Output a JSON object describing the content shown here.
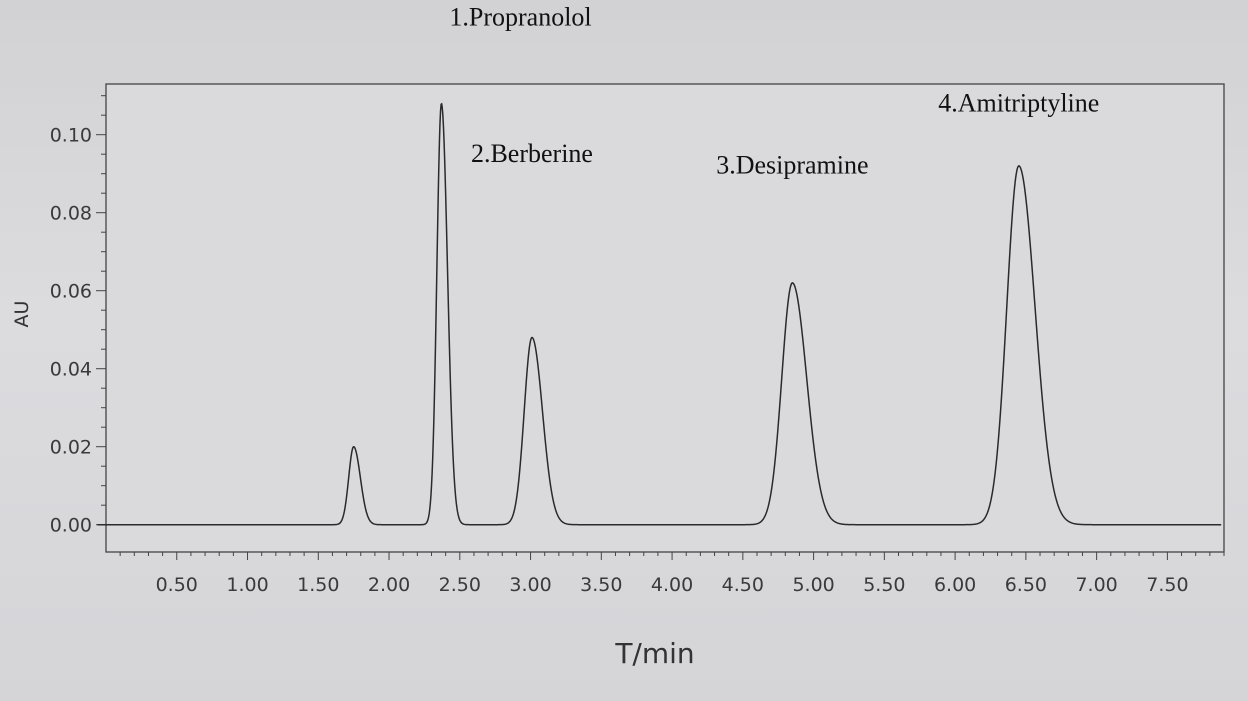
{
  "chart_data": {
    "type": "line",
    "xlabel": "T/min",
    "ylabel": "AU",
    "xlim": [
      0.0,
      7.9
    ],
    "ylim": [
      -0.007,
      0.113
    ],
    "x_ticks": [
      "0.50",
      "1.00",
      "1.50",
      "2.00",
      "2.50",
      "3.00",
      "3.50",
      "4.00",
      "4.50",
      "5.00",
      "5.50",
      "6.00",
      "6.50",
      "7.00",
      "7.50"
    ],
    "y_ticks": [
      "0.00",
      "0.02",
      "0.04",
      "0.06",
      "0.08",
      "0.10"
    ],
    "peaks": [
      {
        "label": "",
        "rt": 1.75,
        "height": 0.02,
        "width": 0.035
      },
      {
        "label": "1.Propranolol",
        "rt": 2.37,
        "height": 0.108,
        "width": 0.032
      },
      {
        "label": "2.Berberine",
        "rt": 3.01,
        "height": 0.048,
        "width": 0.055
      },
      {
        "label": "3.Desipramine",
        "rt": 4.85,
        "height": 0.062,
        "width": 0.075
      },
      {
        "label": "4.Amitriptyline",
        "rt": 6.45,
        "height": 0.092,
        "width": 0.085
      }
    ],
    "grid": false,
    "legend": "none"
  }
}
